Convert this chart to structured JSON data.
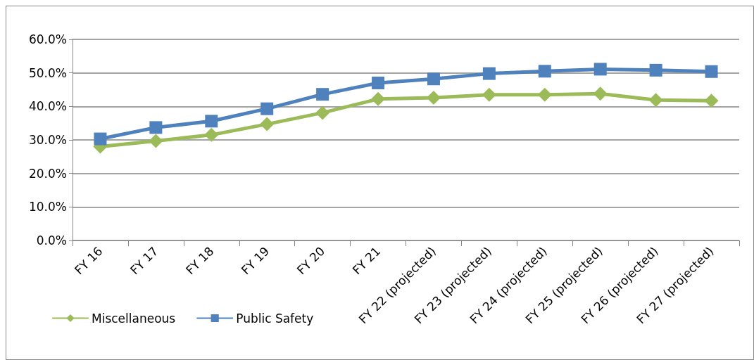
{
  "chart_data": {
    "type": "line",
    "categories": [
      "FY 16",
      "FY 17",
      "FY 18",
      "FY 19",
      "FY 20",
      "FY 21",
      "FY 22 (projected)",
      "FY 23 (projected)",
      "FY 24 (projected)",
      "FY 25 (projected)",
      "FY 26 (projected)",
      "FY 27 (projected)"
    ],
    "series": [
      {
        "name": "Miscellaneous",
        "color": "#9bbb59",
        "marker": "diamond",
        "values": [
          28.0,
          29.7,
          31.5,
          34.7,
          38.1,
          42.2,
          42.6,
          43.5,
          43.5,
          43.8,
          41.9,
          41.7
        ]
      },
      {
        "name": "Public Safety",
        "color": "#4f81bd",
        "marker": "square",
        "values": [
          30.3,
          33.7,
          35.6,
          39.3,
          43.6,
          47.0,
          48.2,
          49.8,
          50.5,
          51.1,
          50.8,
          50.4
        ]
      }
    ],
    "ylim": [
      0,
      60
    ],
    "yticks": [
      {
        "value": 0,
        "label": "0.0%"
      },
      {
        "value": 10,
        "label": "10.0%"
      },
      {
        "value": 20,
        "label": "20.0%"
      },
      {
        "value": 30,
        "label": "30.0%"
      },
      {
        "value": 40,
        "label": "40.0%"
      },
      {
        "value": 50,
        "label": "50.0%"
      },
      {
        "value": 60,
        "label": "60.0%"
      }
    ],
    "grid": "y",
    "legend": "bottom left",
    "line_style": "solid"
  }
}
